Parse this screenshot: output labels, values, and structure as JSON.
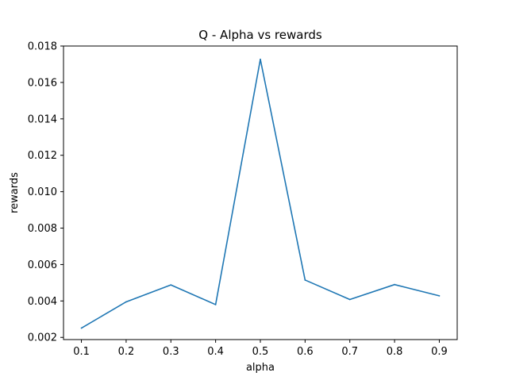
{
  "chart_data": {
    "type": "line",
    "title": "Q - Alpha vs rewards",
    "xlabel": "alpha",
    "ylabel": "rewards",
    "x": [
      0.1,
      0.2,
      0.3,
      0.4,
      0.5,
      0.6,
      0.7,
      0.8,
      0.9
    ],
    "series": [
      {
        "values": [
          0.00251,
          0.00395,
          0.00488,
          0.0038,
          0.01727,
          0.00515,
          0.00408,
          0.0049,
          0.00428
        ],
        "color": "#1f77b4"
      }
    ],
    "xticks": [
      "0.1",
      "0.2",
      "0.3",
      "0.4",
      "0.5",
      "0.6",
      "0.7",
      "0.8",
      "0.9"
    ],
    "yticks": [
      "0.002",
      "0.004",
      "0.006",
      "0.008",
      "0.010",
      "0.012",
      "0.014",
      "0.016",
      "0.018"
    ],
    "xlim": [
      0.06,
      0.94
    ],
    "ylim": [
      0.00188,
      0.018
    ],
    "grid": false
  }
}
